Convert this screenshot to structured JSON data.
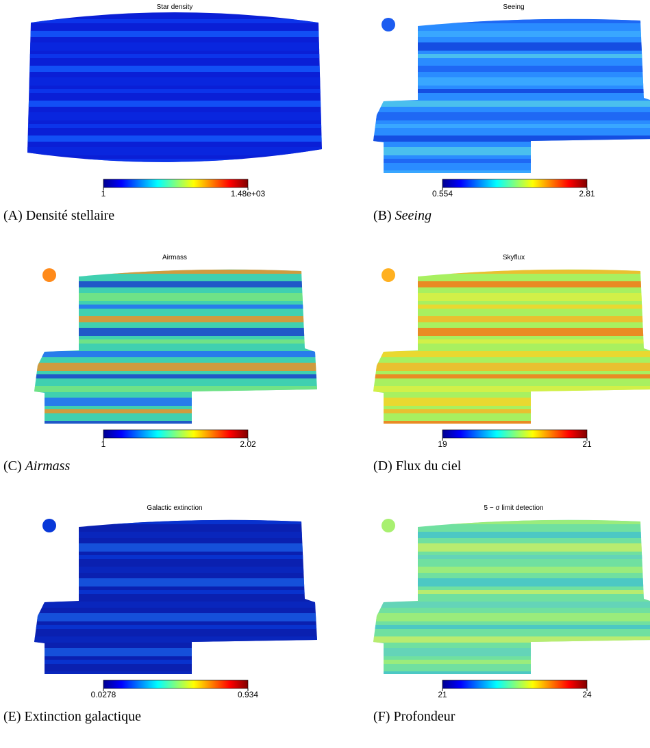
{
  "panels": [
    {
      "title": "Star density",
      "cbar_min": "1",
      "cbar_max": "1.48e+03",
      "label": "(A)",
      "caption": "Densité stellaire"
    },
    {
      "title": "Seeing",
      "cbar_min": "0.554",
      "cbar_max": "2.81",
      "label": "(B)",
      "caption": "Seeing"
    },
    {
      "title": "Airmass",
      "cbar_min": "1",
      "cbar_max": "2.02",
      "label": "(C)",
      "caption": "Airmass"
    },
    {
      "title": "Skyflux",
      "cbar_min": "19",
      "cbar_max": "21",
      "label": "(D)",
      "caption": "Flux du ciel"
    },
    {
      "title": "Galactic extinction",
      "cbar_min": "0.0278",
      "cbar_max": "0.934",
      "label": "(E)",
      "caption": "Extinction galactique"
    },
    {
      "title": "5 − σ limit detection",
      "cbar_min": "21",
      "cbar_max": "24",
      "label": "(F)",
      "caption": "Profondeur"
    }
  ]
}
